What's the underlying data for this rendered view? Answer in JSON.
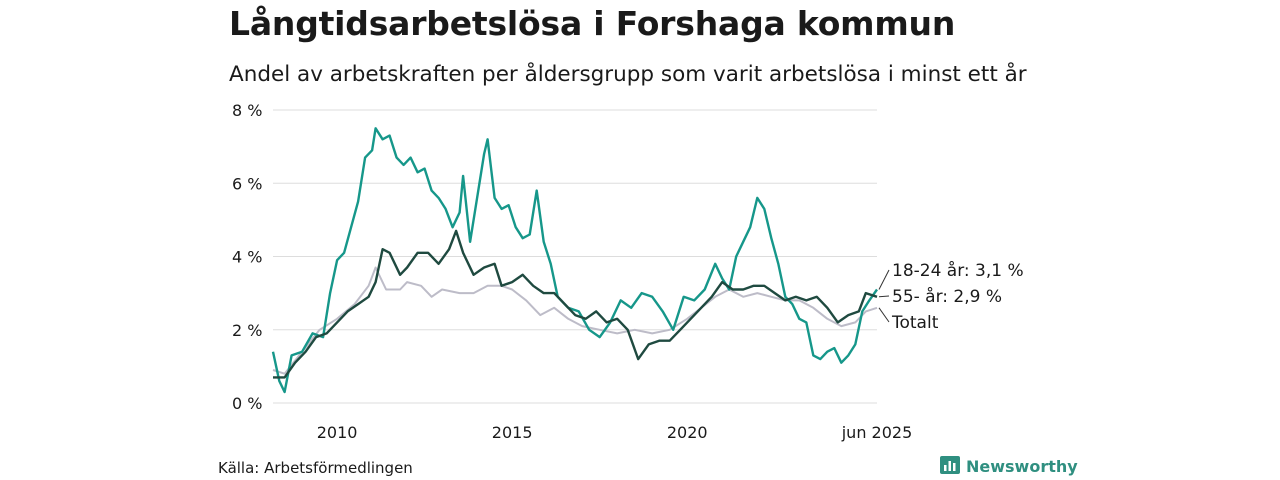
{
  "header": {
    "title": "Långtidsarbetslösa i Forshaga kommun",
    "subtitle": "Andel av arbetskraften per åldersgrupp som varit arbetslösa i minst ett år"
  },
  "footer": {
    "source": "Källa: Arbetsförmedlingen",
    "brand": "Newsworthy"
  },
  "colors": {
    "youth": "#16978a",
    "older": "#1f4a40",
    "total": "#bdbcc8",
    "grid": "#dddddd",
    "brand": "#2f8f80"
  },
  "chart_data": {
    "type": "line",
    "title": "Långtidsarbetslösa i Forshaga kommun",
    "subtitle": "Andel av arbetskraften per åldersgrupp som varit arbetslösa i minst ett år",
    "x_range": [
      2008.17,
      2025.42
    ],
    "ylim": [
      0,
      8
    ],
    "y_ticks": [
      0,
      2,
      4,
      6,
      8
    ],
    "y_tick_labels": [
      "0 %",
      "2 %",
      "4 %",
      "6 %",
      "8 %"
    ],
    "x_ticks": [
      2010,
      2015,
      2020,
      2025.42
    ],
    "x_tick_labels": [
      "2010",
      "2015",
      "2020",
      "jun 2025"
    ],
    "grid": "horizontal",
    "series": [
      {
        "name": "Totalt",
        "color_key": "total",
        "end_label": "Totalt",
        "points": [
          [
            2008.17,
            0.9
          ],
          [
            2008.5,
            0.8
          ],
          [
            2009.0,
            1.4
          ],
          [
            2009.5,
            2.0
          ],
          [
            2010.0,
            2.3
          ],
          [
            2010.5,
            2.7
          ],
          [
            2010.9,
            3.2
          ],
          [
            2011.1,
            3.7
          ],
          [
            2011.4,
            3.1
          ],
          [
            2011.8,
            3.1
          ],
          [
            2012.0,
            3.3
          ],
          [
            2012.4,
            3.2
          ],
          [
            2012.7,
            2.9
          ],
          [
            2013.0,
            3.1
          ],
          [
            2013.5,
            3.0
          ],
          [
            2013.9,
            3.0
          ],
          [
            2014.3,
            3.2
          ],
          [
            2014.7,
            3.2
          ],
          [
            2015.0,
            3.1
          ],
          [
            2015.4,
            2.8
          ],
          [
            2015.8,
            2.4
          ],
          [
            2016.2,
            2.6
          ],
          [
            2016.6,
            2.3
          ],
          [
            2017.0,
            2.1
          ],
          [
            2017.5,
            2.0
          ],
          [
            2018.0,
            1.9
          ],
          [
            2018.5,
            2.0
          ],
          [
            2019.0,
            1.9
          ],
          [
            2019.5,
            2.0
          ],
          [
            2020.0,
            2.3
          ],
          [
            2020.4,
            2.6
          ],
          [
            2020.8,
            2.9
          ],
          [
            2021.2,
            3.1
          ],
          [
            2021.6,
            2.9
          ],
          [
            2022.0,
            3.0
          ],
          [
            2022.4,
            2.9
          ],
          [
            2022.8,
            2.8
          ],
          [
            2023.2,
            2.8
          ],
          [
            2023.6,
            2.6
          ],
          [
            2024.0,
            2.3
          ],
          [
            2024.4,
            2.1
          ],
          [
            2024.8,
            2.2
          ],
          [
            2025.1,
            2.5
          ],
          [
            2025.42,
            2.6
          ]
        ]
      },
      {
        "name": "18-24 år",
        "color_key": "youth",
        "end_label": "18-24 år: 3,1 %",
        "points": [
          [
            2008.17,
            1.4
          ],
          [
            2008.35,
            0.6
          ],
          [
            2008.5,
            0.3
          ],
          [
            2008.7,
            1.3
          ],
          [
            2009.0,
            1.4
          ],
          [
            2009.3,
            1.9
          ],
          [
            2009.6,
            1.8
          ],
          [
            2009.8,
            3.0
          ],
          [
            2010.0,
            3.9
          ],
          [
            2010.2,
            4.1
          ],
          [
            2010.4,
            4.8
          ],
          [
            2010.6,
            5.5
          ],
          [
            2010.8,
            6.7
          ],
          [
            2011.0,
            6.9
          ],
          [
            2011.1,
            7.5
          ],
          [
            2011.3,
            7.2
          ],
          [
            2011.5,
            7.3
          ],
          [
            2011.7,
            6.7
          ],
          [
            2011.9,
            6.5
          ],
          [
            2012.1,
            6.7
          ],
          [
            2012.3,
            6.3
          ],
          [
            2012.5,
            6.4
          ],
          [
            2012.7,
            5.8
          ],
          [
            2012.9,
            5.6
          ],
          [
            2013.1,
            5.3
          ],
          [
            2013.3,
            4.8
          ],
          [
            2013.5,
            5.2
          ],
          [
            2013.6,
            6.2
          ],
          [
            2013.8,
            4.4
          ],
          [
            2014.0,
            5.6
          ],
          [
            2014.2,
            6.8
          ],
          [
            2014.3,
            7.2
          ],
          [
            2014.5,
            5.6
          ],
          [
            2014.7,
            5.3
          ],
          [
            2014.9,
            5.4
          ],
          [
            2015.1,
            4.8
          ],
          [
            2015.3,
            4.5
          ],
          [
            2015.5,
            4.6
          ],
          [
            2015.7,
            5.8
          ],
          [
            2015.9,
            4.4
          ],
          [
            2016.1,
            3.8
          ],
          [
            2016.3,
            2.9
          ],
          [
            2016.6,
            2.6
          ],
          [
            2016.9,
            2.5
          ],
          [
            2017.2,
            2.0
          ],
          [
            2017.5,
            1.8
          ],
          [
            2017.8,
            2.2
          ],
          [
            2018.1,
            2.8
          ],
          [
            2018.4,
            2.6
          ],
          [
            2018.7,
            3.0
          ],
          [
            2019.0,
            2.9
          ],
          [
            2019.3,
            2.5
          ],
          [
            2019.6,
            2.0
          ],
          [
            2019.9,
            2.9
          ],
          [
            2020.2,
            2.8
          ],
          [
            2020.5,
            3.1
          ],
          [
            2020.8,
            3.8
          ],
          [
            2021.0,
            3.4
          ],
          [
            2021.2,
            3.1
          ],
          [
            2021.4,
            4.0
          ],
          [
            2021.6,
            4.4
          ],
          [
            2021.8,
            4.8
          ],
          [
            2022.0,
            5.6
          ],
          [
            2022.2,
            5.3
          ],
          [
            2022.4,
            4.5
          ],
          [
            2022.6,
            3.8
          ],
          [
            2022.8,
            2.9
          ],
          [
            2023.0,
            2.7
          ],
          [
            2023.2,
            2.3
          ],
          [
            2023.4,
            2.2
          ],
          [
            2023.6,
            1.3
          ],
          [
            2023.8,
            1.2
          ],
          [
            2024.0,
            1.4
          ],
          [
            2024.2,
            1.5
          ],
          [
            2024.4,
            1.1
          ],
          [
            2024.6,
            1.3
          ],
          [
            2024.8,
            1.6
          ],
          [
            2025.0,
            2.5
          ],
          [
            2025.2,
            2.8
          ],
          [
            2025.42,
            3.1
          ]
        ]
      },
      {
        "name": "55- år",
        "color_key": "older",
        "end_label": "55- år: 2,9 %",
        "points": [
          [
            2008.17,
            0.7
          ],
          [
            2008.5,
            0.7
          ],
          [
            2008.8,
            1.1
          ],
          [
            2009.1,
            1.4
          ],
          [
            2009.4,
            1.8
          ],
          [
            2009.7,
            1.9
          ],
          [
            2010.0,
            2.2
          ],
          [
            2010.3,
            2.5
          ],
          [
            2010.6,
            2.7
          ],
          [
            2010.9,
            2.9
          ],
          [
            2011.1,
            3.3
          ],
          [
            2011.3,
            4.2
          ],
          [
            2011.5,
            4.1
          ],
          [
            2011.8,
            3.5
          ],
          [
            2012.0,
            3.7
          ],
          [
            2012.3,
            4.1
          ],
          [
            2012.6,
            4.1
          ],
          [
            2012.9,
            3.8
          ],
          [
            2013.2,
            4.2
          ],
          [
            2013.4,
            4.7
          ],
          [
            2013.6,
            4.1
          ],
          [
            2013.9,
            3.5
          ],
          [
            2014.2,
            3.7
          ],
          [
            2014.5,
            3.8
          ],
          [
            2014.7,
            3.2
          ],
          [
            2015.0,
            3.3
          ],
          [
            2015.3,
            3.5
          ],
          [
            2015.6,
            3.2
          ],
          [
            2015.9,
            3.0
          ],
          [
            2016.2,
            3.0
          ],
          [
            2016.5,
            2.7
          ],
          [
            2016.8,
            2.4
          ],
          [
            2017.1,
            2.3
          ],
          [
            2017.4,
            2.5
          ],
          [
            2017.7,
            2.2
          ],
          [
            2018.0,
            2.3
          ],
          [
            2018.3,
            2.0
          ],
          [
            2018.6,
            1.2
          ],
          [
            2018.9,
            1.6
          ],
          [
            2019.2,
            1.7
          ],
          [
            2019.5,
            1.7
          ],
          [
            2019.8,
            2.0
          ],
          [
            2020.1,
            2.3
          ],
          [
            2020.4,
            2.6
          ],
          [
            2020.7,
            2.9
          ],
          [
            2021.0,
            3.3
          ],
          [
            2021.3,
            3.1
          ],
          [
            2021.6,
            3.1
          ],
          [
            2021.9,
            3.2
          ],
          [
            2022.2,
            3.2
          ],
          [
            2022.5,
            3.0
          ],
          [
            2022.8,
            2.8
          ],
          [
            2023.1,
            2.9
          ],
          [
            2023.4,
            2.8
          ],
          [
            2023.7,
            2.9
          ],
          [
            2024.0,
            2.6
          ],
          [
            2024.3,
            2.2
          ],
          [
            2024.6,
            2.4
          ],
          [
            2024.9,
            2.5
          ],
          [
            2025.1,
            3.0
          ],
          [
            2025.42,
            2.9
          ]
        ]
      }
    ]
  }
}
